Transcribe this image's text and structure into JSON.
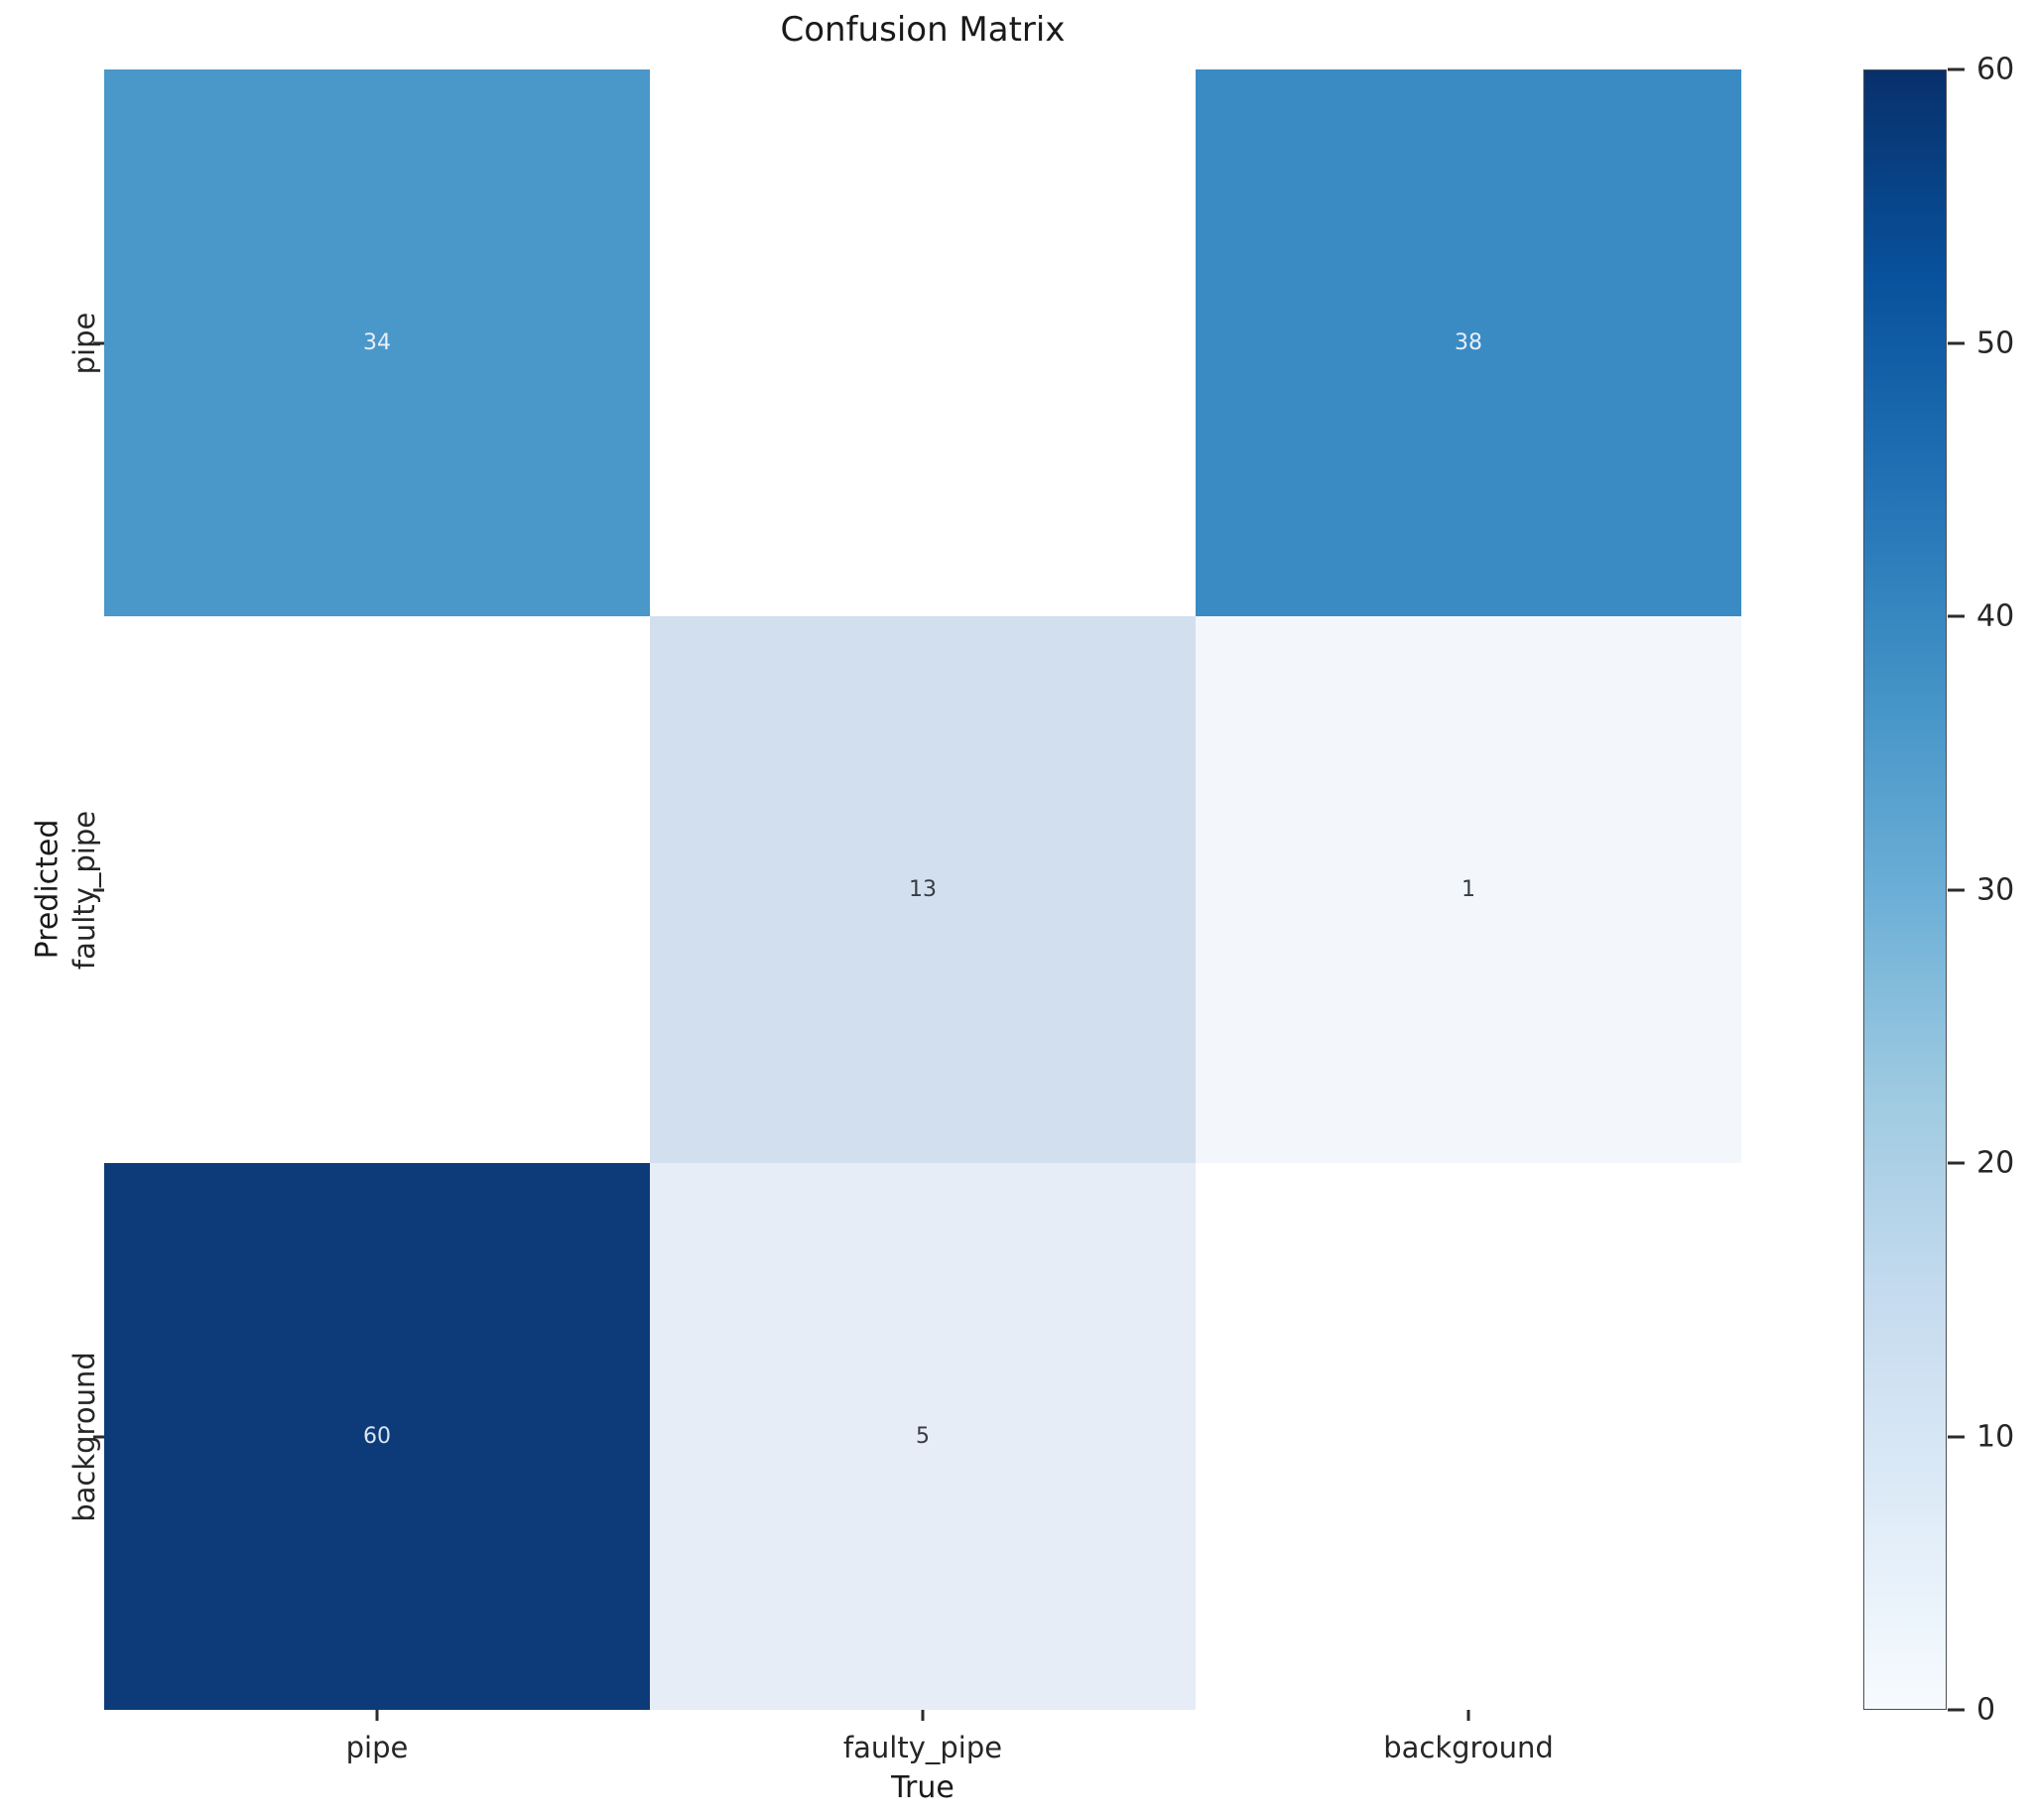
{
  "chart_data": {
    "type": "heatmap",
    "title": "Confusion Matrix",
    "xlabel": "True",
    "ylabel": "Predicted",
    "x_categories": [
      "pipe",
      "faulty_pipe",
      "background"
    ],
    "y_categories": [
      "pipe",
      "faulty_pipe",
      "background"
    ],
    "matrix": [
      [
        34,
        null,
        38
      ],
      [
        null,
        13,
        1
      ],
      [
        60,
        5,
        null
      ]
    ],
    "cell_colors": [
      [
        "#4a97c9",
        "#ffffff",
        "#3a8bc4"
      ],
      [
        "#ffffff",
        "#d2dfee",
        "#f3f7fc"
      ],
      [
        "#0d3a78",
        "#e7edf6",
        "#ffffff"
      ]
    ],
    "annotation_colors": [
      [
        "#e8f0f8",
        null,
        "#e8f0f8"
      ],
      [
        null,
        "#363b44",
        "#363b44"
      ],
      [
        "#dce6f2",
        "#363b44",
        null
      ]
    ],
    "colorbar": {
      "min": 0,
      "max": 60,
      "ticks": [
        0,
        10,
        20,
        30,
        40,
        50,
        60
      ],
      "colormap": "Blues",
      "gradient_stops_top_to_bottom": [
        "#08306b",
        "#08519c",
        "#2171b5",
        "#4292c6",
        "#6baed6",
        "#9ecae1",
        "#c6dbef",
        "#deebf7",
        "#f7fbff"
      ]
    },
    "grid": false,
    "legend": "none"
  }
}
